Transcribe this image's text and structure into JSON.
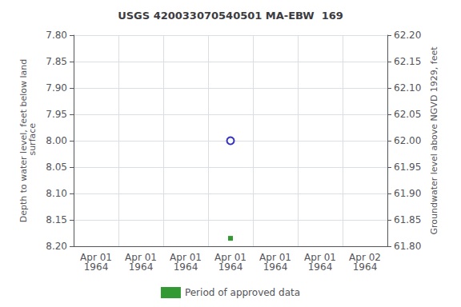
{
  "chart_data": {
    "type": "scatter",
    "title": "USGS 420033070540501 MA-EBW  169",
    "ylabel": "Depth to water level, feet below land\n surface",
    "y2label": "Groundwater level above NGVD 1929, feet",
    "categories": [
      "Apr 01\n1964",
      "Apr 01\n1964",
      "Apr 01\n1964",
      "Apr 01\n1964",
      "Apr 01\n1964",
      "Apr 01\n1964",
      "Apr 02\n1964"
    ],
    "series": [
      {
        "color": "#0000bb",
        "marker": "open_circle",
        "values": [
          null,
          null,
          null,
          8.0,
          null,
          null,
          null
        ]
      },
      {
        "name": "Period of approved data",
        "color": "#008000",
        "marker": "square",
        "values": [
          null,
          null,
          null,
          8.185,
          null,
          null,
          null
        ]
      }
    ],
    "ylim": [
      8.2,
      7.8
    ],
    "yticks": [
      {
        "value": 7.8,
        "label": "7.80"
      },
      {
        "value": 7.85,
        "label": "7.85"
      },
      {
        "value": 7.9,
        "label": "7.90"
      },
      {
        "value": 7.95,
        "label": "7.95"
      },
      {
        "value": 8.0,
        "label": "8.00"
      },
      {
        "value": 8.05,
        "label": "8.05"
      },
      {
        "value": 8.1,
        "label": "8.10"
      },
      {
        "value": 8.15,
        "label": "8.15"
      },
      {
        "value": 8.2,
        "label": "8.20"
      }
    ],
    "y2lim": [
      61.8,
      62.2
    ],
    "y2ticks": [
      {
        "value": 61.8,
        "label": "61.80"
      },
      {
        "value": 61.85,
        "label": "61.85"
      },
      {
        "value": 61.9,
        "label": "61.90"
      },
      {
        "value": 61.95,
        "label": "61.95"
      },
      {
        "value": 62.0,
        "label": "62.00"
      },
      {
        "value": 62.05,
        "label": "62.05"
      },
      {
        "value": 62.1,
        "label": "62.10"
      },
      {
        "value": 62.15,
        "label": "62.15"
      },
      {
        "value": 62.2,
        "label": "62.20"
      }
    ],
    "grid": true,
    "legend": "bottom"
  }
}
